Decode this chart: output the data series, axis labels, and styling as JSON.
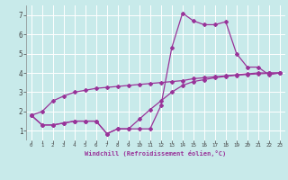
{
  "xlabel": "Windchill (Refroidissement éolien,°C)",
  "background_color": "#c8eaea",
  "grid_color": "#ffffff",
  "line_color": "#993399",
  "xlim": [
    -0.5,
    23.5
  ],
  "ylim": [
    0.5,
    7.5
  ],
  "xticks": [
    0,
    1,
    2,
    3,
    4,
    5,
    6,
    7,
    8,
    9,
    10,
    11,
    12,
    13,
    14,
    15,
    16,
    17,
    18,
    19,
    20,
    21,
    22,
    23
  ],
  "yticks": [
    1,
    2,
    3,
    4,
    5,
    6,
    7
  ],
  "series1_x": [
    0,
    1,
    2,
    3,
    4,
    5,
    6,
    7,
    8,
    9,
    10,
    11,
    12,
    13,
    14,
    15,
    16,
    17,
    18,
    19,
    20,
    21,
    22,
    23
  ],
  "series1_y": [
    1.8,
    1.3,
    1.3,
    1.4,
    1.5,
    1.5,
    1.5,
    0.85,
    1.1,
    1.1,
    1.1,
    1.1,
    2.3,
    5.3,
    7.1,
    6.7,
    6.5,
    6.5,
    6.65,
    5.0,
    4.3,
    4.3,
    3.9,
    4.0
  ],
  "series2_x": [
    0,
    1,
    2,
    3,
    4,
    5,
    6,
    7,
    8,
    9,
    10,
    11,
    12,
    13,
    14,
    15,
    16,
    17,
    18,
    19,
    20,
    21,
    22,
    23
  ],
  "series2_y": [
    1.8,
    2.0,
    2.55,
    2.8,
    3.0,
    3.1,
    3.2,
    3.25,
    3.3,
    3.35,
    3.4,
    3.45,
    3.5,
    3.55,
    3.6,
    3.7,
    3.75,
    3.8,
    3.85,
    3.9,
    3.95,
    4.0,
    4.0,
    4.0
  ],
  "series3_x": [
    0,
    1,
    2,
    3,
    4,
    5,
    6,
    7,
    8,
    9,
    10,
    11,
    12,
    13,
    14,
    15,
    16,
    17,
    18,
    19,
    20,
    21,
    22,
    23
  ],
  "series3_y": [
    1.8,
    1.3,
    1.3,
    1.4,
    1.5,
    1.5,
    1.5,
    0.85,
    1.1,
    1.1,
    1.6,
    2.1,
    2.55,
    3.0,
    3.35,
    3.55,
    3.65,
    3.75,
    3.82,
    3.88,
    3.92,
    3.95,
    3.98,
    4.0
  ]
}
